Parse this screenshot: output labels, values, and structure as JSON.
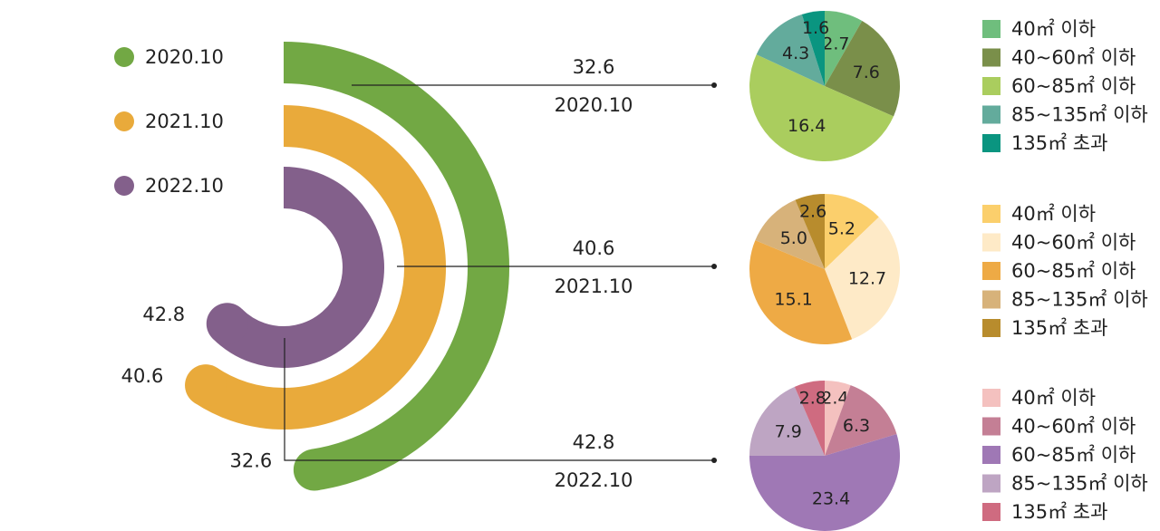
{
  "chart_data": [
    {
      "type": "radial_bar",
      "series": [
        {
          "name": "2020.10",
          "value": 32.6,
          "color": "#72a844"
        },
        {
          "name": "2021.10",
          "value": 40.6,
          "color": "#e9aa3b"
        },
        {
          "name": "2022.10",
          "value": 42.8,
          "color": "#83608b"
        }
      ],
      "legend": "top-left"
    },
    {
      "type": "pie",
      "title_value": "32.6",
      "title_period": "2020.10",
      "categories": [
        "40㎡ 이하",
        "40~60㎡ 이하",
        "60~85㎡ 이하",
        "85~135㎡ 이하",
        "135㎡ 초과"
      ],
      "values": [
        2.7,
        7.6,
        16.4,
        4.3,
        1.6
      ],
      "colors": [
        "#6fbe7d",
        "#7a8f4a",
        "#aacd5e",
        "#63ab9c",
        "#0a9580"
      ],
      "legend": "right"
    },
    {
      "type": "pie",
      "title_value": "40.6",
      "title_period": "2021.10",
      "categories": [
        "40㎡ 이하",
        "40~60㎡ 이하",
        "60~85㎡ 이하",
        "85~135㎡ 이하",
        "135㎡ 초과"
      ],
      "values": [
        5.2,
        12.7,
        15.1,
        5.0,
        2.6
      ],
      "colors": [
        "#fbcf6c",
        "#feeac7",
        "#eeaa45",
        "#d7b27a",
        "#b88c2d"
      ],
      "legend": "right"
    },
    {
      "type": "pie",
      "title_value": "42.8",
      "title_period": "2022.10",
      "categories": [
        "40㎡ 이하",
        "40~60㎡ 이하",
        "60~85㎡ 이하",
        "85~135㎡ 이하",
        "135㎡ 초과"
      ],
      "values": [
        2.4,
        6.3,
        23.4,
        7.9,
        2.8
      ],
      "colors": [
        "#f4c1bf",
        "#c47f95",
        "#9f78b5",
        "#bea5c3",
        "#cf6b80"
      ],
      "legend": "right"
    }
  ]
}
